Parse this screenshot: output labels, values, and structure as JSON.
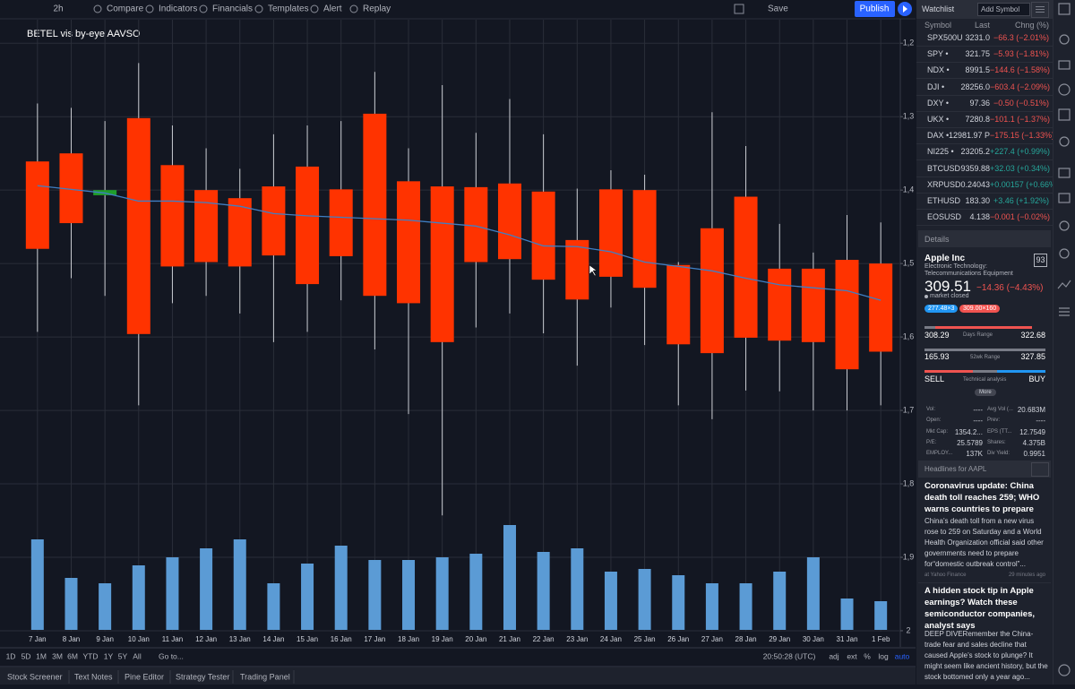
{
  "toolbar": {
    "interval": "2h",
    "items": [
      "Compare",
      "Indicators",
      "Financials",
      "Templates",
      "Alert",
      "Replay"
    ],
    "save": "Save",
    "publish": "Publish"
  },
  "chart_data": {
    "type": "candlestick",
    "title": "BETEL vis by-eye AAVSO",
    "categories": [
      "7 Jan",
      "8 Jan",
      "9 Jan",
      "10 Jan",
      "11 Jan",
      "12 Jan",
      "13 Jan",
      "14 Jan",
      "15 Jan",
      "16 Jan",
      "17 Jan",
      "18 Jan",
      "19 Jan",
      "20 Jan",
      "21 Jan",
      "22 Jan",
      "23 Jan",
      "24 Jan",
      "25 Jan",
      "26 Jan",
      "27 Jan",
      "28 Jan",
      "29 Jan",
      "30 Jan",
      "31 Jan",
      "1 Feb"
    ],
    "open": [
      1.48,
      1.445,
      1.4,
      1.596,
      1.504,
      1.498,
      1.504,
      1.489,
      1.528,
      1.49,
      1.544,
      1.554,
      1.607,
      1.498,
      1.494,
      1.522,
      1.549,
      1.518,
      1.533,
      1.61,
      1.622,
      1.601,
      1.605,
      1.607,
      1.644,
      1.62
    ],
    "high": [
      1.593,
      1.52,
      1.544,
      1.693,
      1.554,
      1.544,
      1.568,
      1.607,
      1.593,
      1.55,
      1.617,
      1.705,
      1.843,
      1.587,
      1.568,
      1.595,
      1.639,
      1.56,
      1.611,
      1.693,
      1.712,
      1.673,
      1.674,
      1.7,
      1.7,
      1.693
    ],
    "low": [
      1.282,
      1.288,
      1.306,
      1.227,
      1.312,
      1.343,
      1.371,
      1.324,
      1.312,
      1.306,
      1.239,
      1.343,
      1.257,
      1.322,
      1.276,
      1.324,
      1.398,
      1.373,
      1.379,
      1.498,
      1.294,
      1.34,
      1.446,
      1.485,
      1.434,
      1.444
    ],
    "close": [
      1.361,
      1.35,
      1.407,
      1.302,
      1.366,
      1.4,
      1.411,
      1.395,
      1.368,
      1.399,
      1.296,
      1.388,
      1.395,
      1.396,
      1.391,
      1.402,
      1.468,
      1.399,
      1.4,
      1.502,
      1.452,
      1.409,
      1.507,
      1.507,
      1.495,
      1.5
    ],
    "up_color": "#1f9e2c",
    "down_color": "#ff3300",
    "wick_color": "#c9ccd2",
    "ma": {
      "color": "#3f7fc4",
      "values": [
        1.394,
        1.399,
        1.404,
        1.415,
        1.415,
        1.417,
        1.422,
        1.432,
        1.435,
        1.437,
        1.439,
        1.441,
        1.445,
        1.449,
        1.461,
        1.476,
        1.477,
        1.484,
        1.498,
        1.504,
        1.51,
        1.52,
        1.529,
        1.533,
        1.537,
        1.55
      ]
    },
    "volume": {
      "color": "#5b9bd5",
      "values": [
        101,
        58,
        52,
        72,
        81,
        91,
        101,
        52,
        74,
        94,
        78,
        78,
        81,
        85,
        117,
        87,
        91,
        65,
        68,
        61,
        52,
        52,
        65,
        81,
        35,
        32
      ]
    },
    "ylim": [
      1.168,
      2.022
    ],
    "y_inverted": true,
    "yticks": [
      {
        "value": 1.2,
        "label": "1,2"
      },
      {
        "value": 1.3,
        "label": "1,3"
      },
      {
        "value": 1.4,
        "label": "1,4"
      },
      {
        "value": 1.5,
        "label": "1,5"
      },
      {
        "value": 1.6,
        "label": "1,6"
      },
      {
        "value": 1.7,
        "label": "1,7"
      },
      {
        "value": 1.8,
        "label": "1,8"
      },
      {
        "value": 1.9,
        "label": "1,9"
      },
      2
    ],
    "grid": true
  },
  "range_bar": {
    "ranges": [
      "1D",
      "5D",
      "1M",
      "3M",
      "6M",
      "YTD",
      "1Y",
      "5Y",
      "All"
    ],
    "goto": "Go to...",
    "time": "20:50:28 (UTC)",
    "options": [
      "adj",
      "ext",
      "%",
      "log",
      "auto"
    ]
  },
  "tabs": [
    "Stock Screener",
    "Text Notes",
    "Pine Editor",
    "Strategy Tester",
    "Trading Panel"
  ],
  "watchlist": {
    "title": "Watchlist",
    "add": "Add Symbol",
    "columns": [
      "Symbol",
      "Last",
      "Chng (%)"
    ],
    "rows": [
      [
        "SPX500U",
        "3231.0",
        "−66.3 (−2.01%)"
      ],
      [
        "SPY •",
        "321.75",
        "−5.93 (−1.81%)"
      ],
      [
        "NDX •",
        "8991.5",
        "−144.6 (−1.58%)"
      ],
      [
        "DJI •",
        "28256.0",
        "−603.4 (−2.09%)"
      ],
      [
        "DXY •",
        "97.36",
        "−0.50 (−0.51%)"
      ],
      [
        "UKX •",
        "7280.8",
        "−101.1 (−1.37%)"
      ],
      [
        "DAX •",
        "12981.97 P",
        "−175.15 (−1.33%)"
      ],
      [
        "NI225 •",
        "23205.2",
        "+227.4 (+0.99%)"
      ],
      [
        "BTCUSD",
        "9359.88",
        "+32.03 (+0.34%)"
      ],
      [
        "XRPUSD",
        "0.24043",
        "+0.00157 (+0.66%)"
      ],
      [
        "ETHUSD",
        "183.30",
        "+3.46 (+1.92%)"
      ],
      [
        "EOSUSD",
        "4.138",
        "−0.001 (−0.02%)"
      ]
    ]
  },
  "details": {
    "title": "Details",
    "name": "Apple Inc",
    "sector": "Electronic Technology: Telecommunications Equipment",
    "score": "93",
    "price": "309.51",
    "change": "−14.36 (−4.43%)",
    "status": "market closed",
    "bid": "277.48×3",
    "ask": "309.00×160",
    "days_low": "308.29",
    "days_label": "Days Range",
    "days_high": "322.68",
    "wk_low": "165.93",
    "wk_label": "52wk Range",
    "wk_high": "327.85",
    "sell": "SELL",
    "ta_label": "Technical analysis",
    "buy": "BUY",
    "more": "More",
    "stats": [
      [
        "Vol:",
        "----",
        "Avg Vol (...",
        "20.683M"
      ],
      [
        "Open:",
        "----",
        "Prev:",
        "----"
      ],
      [
        "Mkt Cap:",
        "1354.2...",
        "EPS (TT...",
        "12.7549"
      ],
      [
        "P/E:",
        "25.5789",
        "Shares:",
        "4.375B"
      ],
      [
        "EMPLOY...",
        "137K",
        "Div Yield:",
        "0.9951"
      ]
    ]
  },
  "headlines": {
    "title": "Headlines for AAPL",
    "items": [
      {
        "title": "Coronavirus update: China death toll reaches 259; WHO warns countries to prepare",
        "body": "China’s death toll from a new virus rose to 259 on Saturday and a World Health Organization official said other governments need to prepare for“domestic outbreak control”...",
        "source": "at Yahoo Finance",
        "time": "29 minutes ago"
      },
      {
        "title": "A hidden stock tip in Apple earnings? Watch these semiconductor companies, analyst says",
        "body": "DEEP DIVERemember the China-trade fear and sales decline that caused Apple’s stock to plunge? It might seem like ancient history, but the stock bottomed only a year ago..."
      }
    ]
  }
}
